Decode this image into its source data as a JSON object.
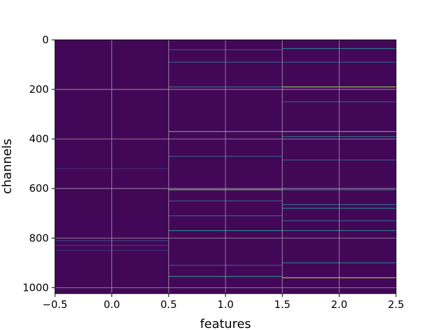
{
  "chart_data": {
    "type": "heatmap",
    "title": "",
    "xlabel": "features",
    "ylabel": "channels",
    "xlim": [
      -0.5,
      2.5
    ],
    "ylim": [
      1024,
      0
    ],
    "y_inverted": true,
    "grid": true,
    "colormap": "viridis",
    "x_ticks": [
      -0.5,
      0.0,
      0.5,
      1.0,
      1.5,
      2.0,
      2.5
    ],
    "x_tick_labels": [
      "−0.5",
      "0.0",
      "0.5",
      "1.0",
      "1.5",
      "2.0",
      "2.5"
    ],
    "y_ticks": [
      0,
      200,
      400,
      600,
      800,
      1000
    ],
    "y_tick_labels": [
      "0",
      "200",
      "400",
      "600",
      "800",
      "1000"
    ],
    "features": [
      {
        "x": 0,
        "highlights": [
          {
            "channel": 810,
            "value": 0.22
          },
          {
            "channel": 830,
            "value": 0.2
          },
          {
            "channel": 850,
            "value": 0.15
          },
          {
            "channel": 520,
            "value": 0.14
          }
        ]
      },
      {
        "x": 1,
        "highlights": [
          {
            "channel": 40,
            "value": 0.25
          },
          {
            "channel": 90,
            "value": 0.3
          },
          {
            "channel": 190,
            "value": 0.4
          },
          {
            "channel": 370,
            "value": 0.7
          },
          {
            "channel": 470,
            "value": 0.3
          },
          {
            "channel": 605,
            "value": 0.75
          },
          {
            "channel": 650,
            "value": 0.3
          },
          {
            "channel": 710,
            "value": 0.35
          },
          {
            "channel": 770,
            "value": 0.5
          },
          {
            "channel": 910,
            "value": 0.3
          },
          {
            "channel": 955,
            "value": 0.55
          }
        ]
      },
      {
        "x": 2,
        "highlights": [
          {
            "channel": 35,
            "value": 0.45
          },
          {
            "channel": 90,
            "value": 0.3
          },
          {
            "channel": 190,
            "value": 0.85
          },
          {
            "channel": 250,
            "value": 0.3
          },
          {
            "channel": 370,
            "value": 0.75
          },
          {
            "channel": 390,
            "value": 0.35
          },
          {
            "channel": 485,
            "value": 0.35
          },
          {
            "channel": 605,
            "value": 0.45
          },
          {
            "channel": 665,
            "value": 0.4
          },
          {
            "channel": 680,
            "value": 0.5
          },
          {
            "channel": 730,
            "value": 0.35
          },
          {
            "channel": 770,
            "value": 0.45
          },
          {
            "channel": 900,
            "value": 0.45
          },
          {
            "channel": 960,
            "value": 0.9
          }
        ]
      }
    ]
  }
}
